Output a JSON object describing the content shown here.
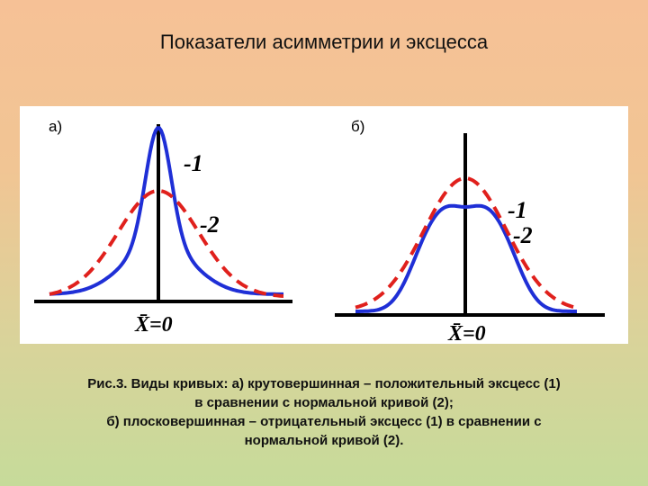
{
  "title": "Показатели асимметрии и эксцесса",
  "panels": [
    {
      "label": "а)",
      "curve_labels": [
        "-1",
        "-2"
      ],
      "axis_label": "X̄=0"
    },
    {
      "label": "б)",
      "curve_labels": [
        "-1",
        "-2"
      ],
      "axis_label": "X̄=0"
    }
  ],
  "caption": [
    "Рис.3. Виды кривых: а) крутовершинная – положительный эксцесс (1)",
    "в сравнении с нормальной кривой (2);",
    "б) плосковершинная – отрицательный эксцесс (1) в сравнении с",
    "нормальной кривой (2)."
  ]
}
